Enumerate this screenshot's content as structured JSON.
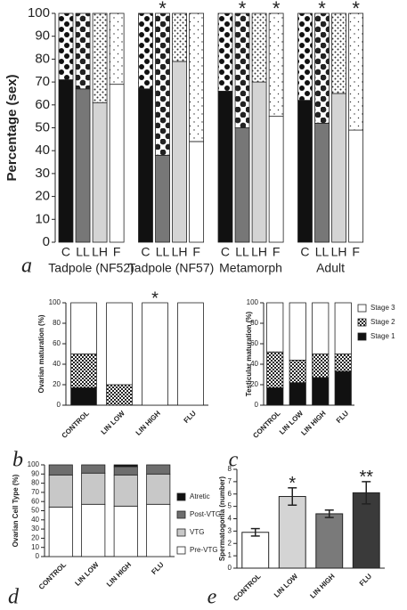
{
  "chart_data": [
    {
      "type": "stacked_bar",
      "panel": "a",
      "ylabel": "Percentage (sex)",
      "groups": [
        "Tadpole (NF52)",
        "Tadpole (NF57)",
        "Metamorph",
        "Adult"
      ],
      "categories": [
        "C",
        "LL",
        "LH",
        "F",
        "C",
        "LL",
        "LH",
        "F",
        "C",
        "LL",
        "LH",
        "F",
        "C",
        "LL",
        "LH",
        "F"
      ],
      "series": [
        {
          "values": [
            71,
            67,
            61,
            69,
            67,
            38,
            79,
            44,
            66,
            50,
            70,
            55,
            62,
            52,
            65,
            49
          ],
          "colors": [
            "#111111",
            "#777777",
            "#d4d4d4",
            "#ffffff"
          ]
        },
        {
          "values": [
            29,
            33,
            39,
            31,
            33,
            62,
            21,
            56,
            34,
            50,
            30,
            45,
            38,
            48,
            35,
            51
          ],
          "colors": [
            "url(#dotsA)",
            "url(#dotsB)",
            "url(#dotsC)",
            "url(#dotsD)"
          ]
        }
      ],
      "significance": [
        null,
        null,
        null,
        null,
        null,
        "*",
        null,
        null,
        null,
        "*",
        null,
        "*",
        null,
        "*",
        null,
        "*"
      ],
      "ylim": [
        0,
        100
      ],
      "yticks": [
        0,
        10,
        20,
        30,
        40,
        50,
        60,
        70,
        80,
        90,
        100
      ]
    },
    {
      "type": "stacked_bar",
      "panel": "b",
      "ylabel": "Ovarian maturation (%)",
      "categories": [
        "CONTROL",
        "LIN LOW",
        "LIN HIGH",
        "FLU"
      ],
      "series": [
        {
          "color": "#111111",
          "values": [
            17,
            0,
            0,
            0
          ]
        },
        {
          "color": "url(#checker)",
          "values": [
            33,
            20,
            0,
            0
          ]
        },
        {
          "color": "#ffffff",
          "values": [
            50,
            80,
            100,
            100
          ]
        }
      ],
      "significance": [
        null,
        null,
        "*",
        null
      ],
      "ylim": [
        0,
        100
      ],
      "yticks": [
        0,
        20,
        40,
        60,
        80,
        100
      ]
    },
    {
      "type": "stacked_bar",
      "panel": "c",
      "ylabel": "Testicular maturation (%)",
      "categories": [
        "CONTROL",
        "LIN LOW",
        "LIN HIGH",
        "FLU"
      ],
      "series": [
        {
          "name": "Stage 1",
          "color": "#111111",
          "values": [
            17,
            22,
            27,
            33
          ]
        },
        {
          "name": "Stage 2",
          "color": "url(#checker)",
          "values": [
            35,
            22,
            23,
            17
          ]
        },
        {
          "name": "Stage 3",
          "color": "#ffffff",
          "values": [
            48,
            56,
            50,
            50
          ]
        }
      ],
      "legend": "right",
      "ylim": [
        0,
        100
      ],
      "yticks": [
        0,
        20,
        40,
        60,
        80,
        100
      ]
    },
    {
      "type": "stacked_bar",
      "panel": "d",
      "ylabel": "Ovarian Cell Type (%)",
      "categories": [
        "CONTROL",
        "LIN LOW",
        "LIN HIGH",
        "FLU"
      ],
      "series": [
        {
          "name": "Pre-VTG",
          "color": "#ffffff",
          "values": [
            54,
            57,
            55,
            57
          ]
        },
        {
          "name": "VTG",
          "color": "#c8c8c8",
          "values": [
            35,
            34,
            34,
            33
          ]
        },
        {
          "name": "Post-VTG",
          "color": "#6e6e6e",
          "values": [
            11,
            9,
            9,
            10
          ]
        },
        {
          "name": "Atretic",
          "color": "#111111",
          "values": [
            0,
            0,
            2,
            0
          ]
        }
      ],
      "legend": "right",
      "ylim": [
        0,
        100
      ],
      "yticks": [
        0,
        10,
        20,
        30,
        40,
        50,
        60,
        70,
        80,
        90,
        100
      ]
    },
    {
      "type": "bar",
      "panel": "e",
      "ylabel": "Spermatogonia (number)",
      "categories": [
        "CONTROL",
        "LIN LOW",
        "LIN HIGH",
        "FLU"
      ],
      "values": [
        2.9,
        5.8,
        4.4,
        6.1
      ],
      "errors": [
        0.3,
        0.7,
        0.3,
        0.9
      ],
      "colors": [
        "#ffffff",
        "#d4d4d4",
        "#7a7a7a",
        "#3a3a3a"
      ],
      "significance": [
        null,
        "*",
        null,
        "**"
      ],
      "ylim": [
        0,
        8
      ],
      "yticks": [
        0,
        1,
        2,
        3,
        4,
        5,
        6,
        7,
        8
      ]
    }
  ]
}
